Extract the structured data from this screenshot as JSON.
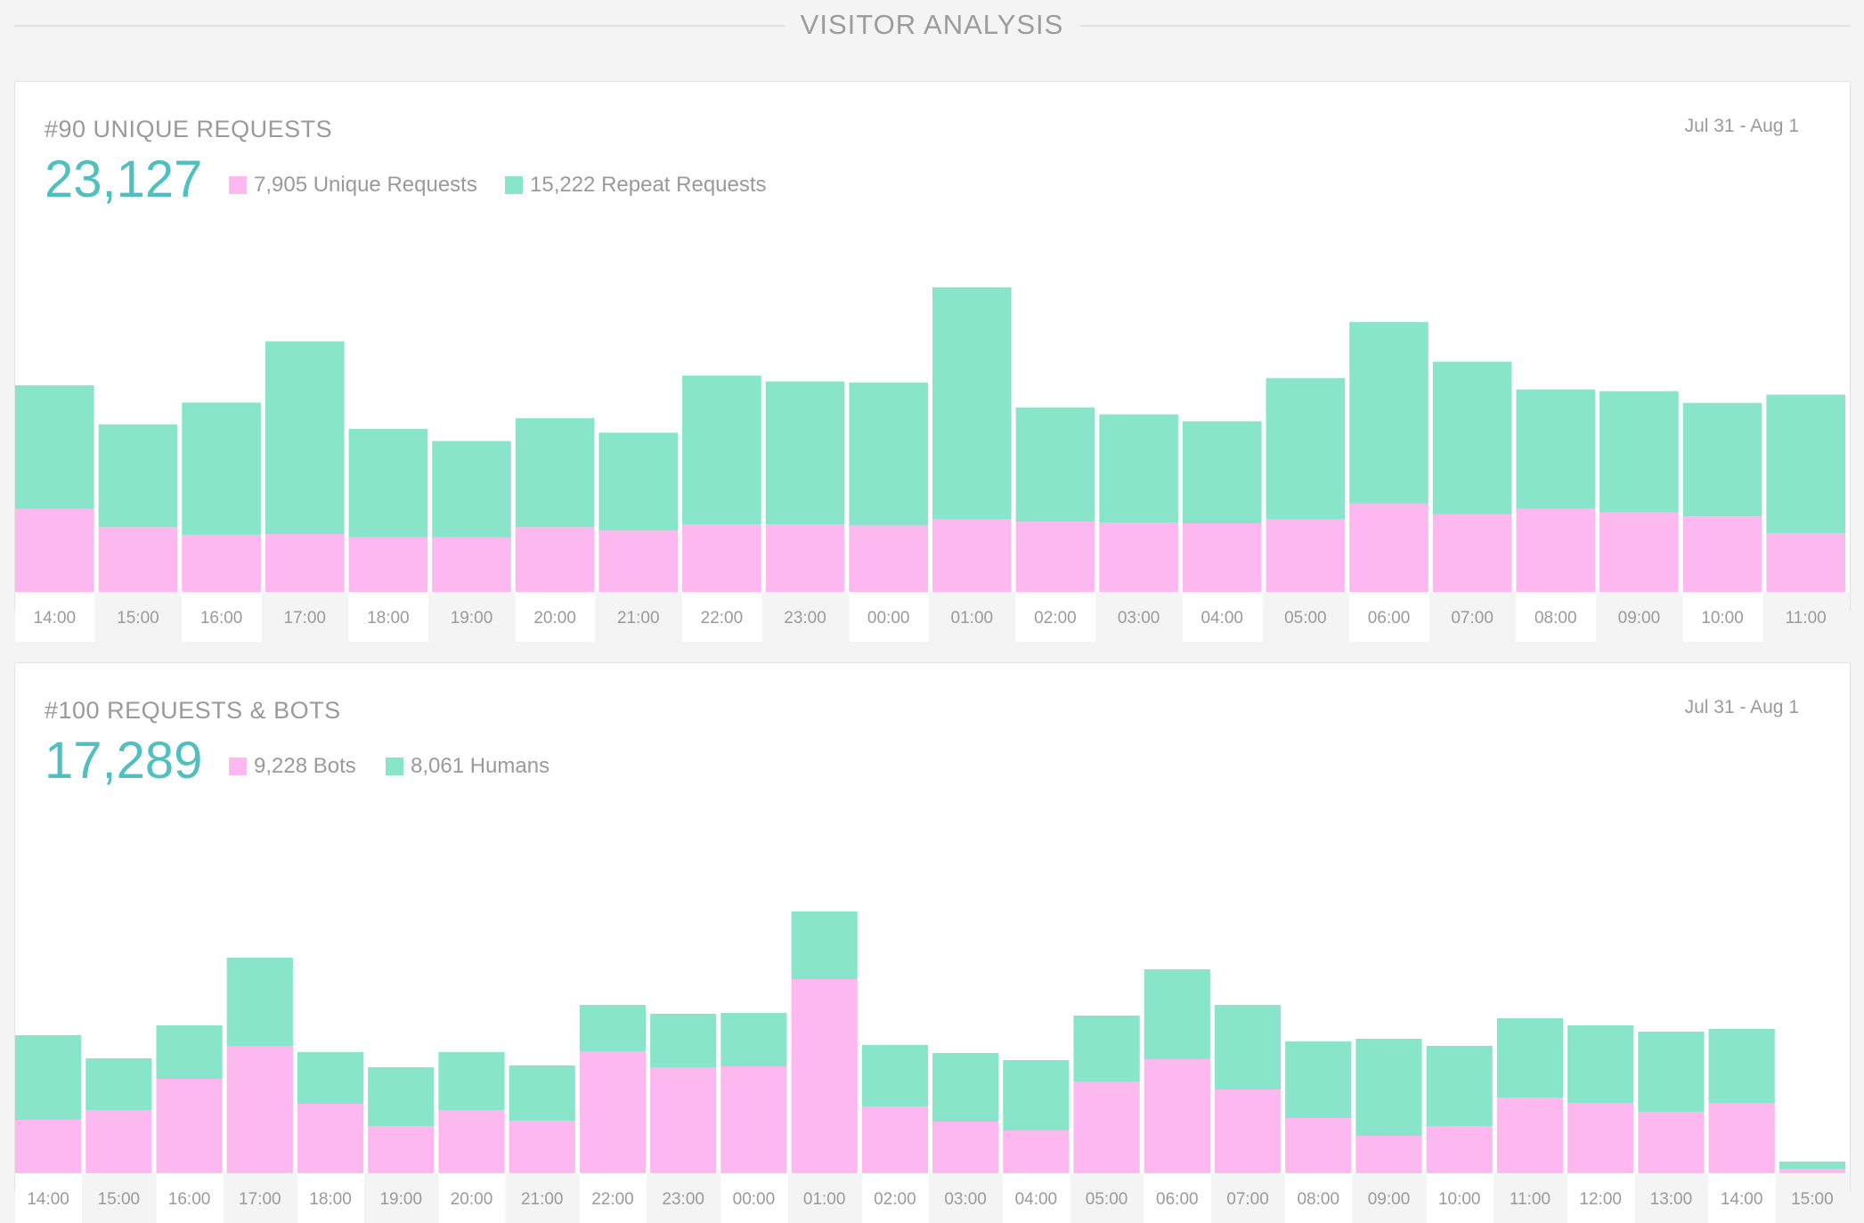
{
  "header": {
    "title": "VISITOR ANALYSIS"
  },
  "colors": {
    "unique": "#fdb8ef",
    "repeat": "#89e5c9",
    "accent": "#4fbfbf"
  },
  "charts": [
    {
      "title": "#90 UNIQUE REQUESTS",
      "date_range": "Jul 31 - Aug 1",
      "total": "23,127",
      "legend": [
        {
          "label": "7,905 Unique Requests",
          "color": "#fdb8ef"
        },
        {
          "label": "15,222 Repeat Requests",
          "color": "#89e5c9"
        }
      ]
    },
    {
      "title": "#100 REQUESTS & BOTS",
      "date_range": "Jul 31 - Aug 1",
      "total": "17,289",
      "legend": [
        {
          "label": "9,228 Bots",
          "color": "#fdb8ef"
        },
        {
          "label": "8,061 Humans",
          "color": "#89e5c9"
        }
      ]
    }
  ],
  "chart_data": [
    {
      "type": "bar",
      "stacked": true,
      "title": "#90 UNIQUE REQUESTS",
      "categories": [
        "14:00",
        "15:00",
        "16:00",
        "17:00",
        "18:00",
        "19:00",
        "20:00",
        "21:00",
        "22:00",
        "23:00",
        "00:00",
        "01:00",
        "02:00",
        "03:00",
        "04:00",
        "05:00",
        "06:00",
        "07:00",
        "08:00",
        "09:00",
        "10:00",
        "11:00"
      ],
      "series": [
        {
          "name": "Unique Requests",
          "color": "#fdb8ef",
          "values": [
            240,
            187,
            165,
            167,
            158,
            158,
            187,
            177,
            195,
            195,
            192,
            210,
            203,
            200,
            198,
            210,
            255,
            225,
            240,
            230,
            218,
            170
          ]
        },
        {
          "name": "Repeat Requests",
          "color": "#89e5c9",
          "values": [
            357,
            297,
            382,
            557,
            313,
            278,
            315,
            283,
            430,
            413,
            413,
            670,
            330,
            313,
            295,
            408,
            525,
            440,
            345,
            350,
            328,
            400
          ]
        }
      ],
      "ylim": [
        0,
        900
      ],
      "grid": false
    },
    {
      "type": "bar",
      "stacked": true,
      "title": "#100 REQUESTS & BOTS",
      "categories": [
        "14:00",
        "15:00",
        "16:00",
        "17:00",
        "18:00",
        "19:00",
        "20:00",
        "21:00",
        "22:00",
        "23:00",
        "00:00",
        "01:00",
        "02:00",
        "03:00",
        "04:00",
        "05:00",
        "06:00",
        "07:00",
        "08:00",
        "09:00",
        "10:00",
        "11:00",
        "12:00",
        "13:00",
        "14:00",
        "15:00"
      ],
      "series": [
        {
          "name": "Bots",
          "color": "#fdb8ef",
          "values": [
            60,
            71,
            106,
            143,
            78,
            53,
            71,
            59,
            137,
            119,
            120,
            218,
            75,
            58,
            48,
            103,
            128,
            94,
            62,
            42,
            53,
            85,
            79,
            69,
            79,
            5
          ]
        },
        {
          "name": "Humans",
          "color": "#89e5c9",
          "values": [
            95,
            58,
            60,
            99,
            58,
            66,
            65,
            62,
            52,
            60,
            60,
            76,
            69,
            77,
            79,
            74,
            101,
            95,
            86,
            109,
            90,
            89,
            87,
            90,
            83,
            8
          ]
        }
      ],
      "ylim": [
        0,
        350
      ],
      "grid": false
    }
  ]
}
